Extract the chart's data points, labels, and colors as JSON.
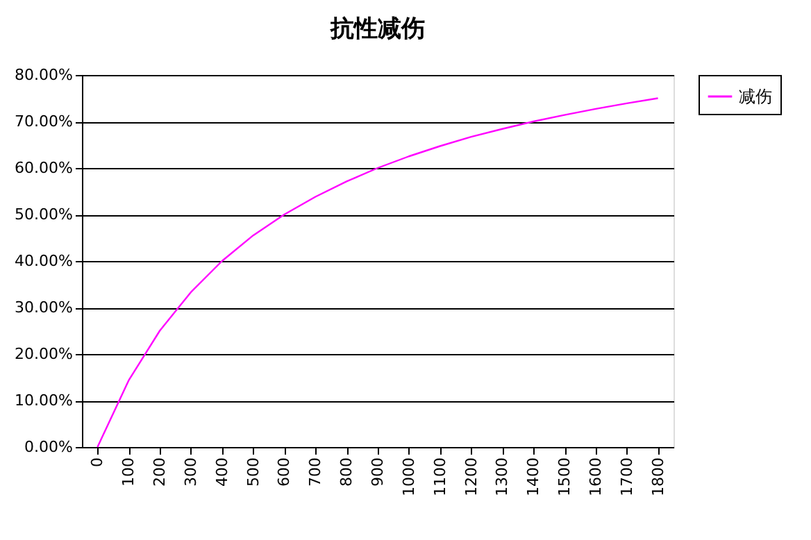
{
  "chart_data": {
    "type": "line",
    "title": "抗性减伤",
    "categories": [
      "0",
      "100",
      "200",
      "300",
      "400",
      "500",
      "600",
      "700",
      "800",
      "900",
      "1000",
      "1100",
      "1200",
      "1300",
      "1400",
      "1500",
      "1600",
      "1700",
      "1800"
    ],
    "series": [
      {
        "name": "减伤",
        "color": "#ff00ff",
        "values": [
          0,
          14.3,
          25.0,
          33.3,
          40.0,
          45.5,
          50.0,
          53.8,
          57.1,
          60.0,
          62.5,
          64.7,
          66.7,
          68.4,
          70.0,
          71.4,
          72.7,
          73.9,
          75.0
        ]
      }
    ],
    "ylim": [
      0,
      80
    ],
    "yticks": [
      {
        "value": 0,
        "label": "0.00%"
      },
      {
        "value": 10,
        "label": "10.00%"
      },
      {
        "value": 20,
        "label": "20.00%"
      },
      {
        "value": 30,
        "label": "30.00%"
      },
      {
        "value": 40,
        "label": "40.00%"
      },
      {
        "value": 50,
        "label": "50.00%"
      },
      {
        "value": 60,
        "label": "60.00%"
      },
      {
        "value": 70,
        "label": "70.00%"
      },
      {
        "value": 80,
        "label": "80.00%"
      }
    ],
    "grid": "y",
    "legend": "right",
    "marker": "none",
    "line_style": "solid"
  }
}
